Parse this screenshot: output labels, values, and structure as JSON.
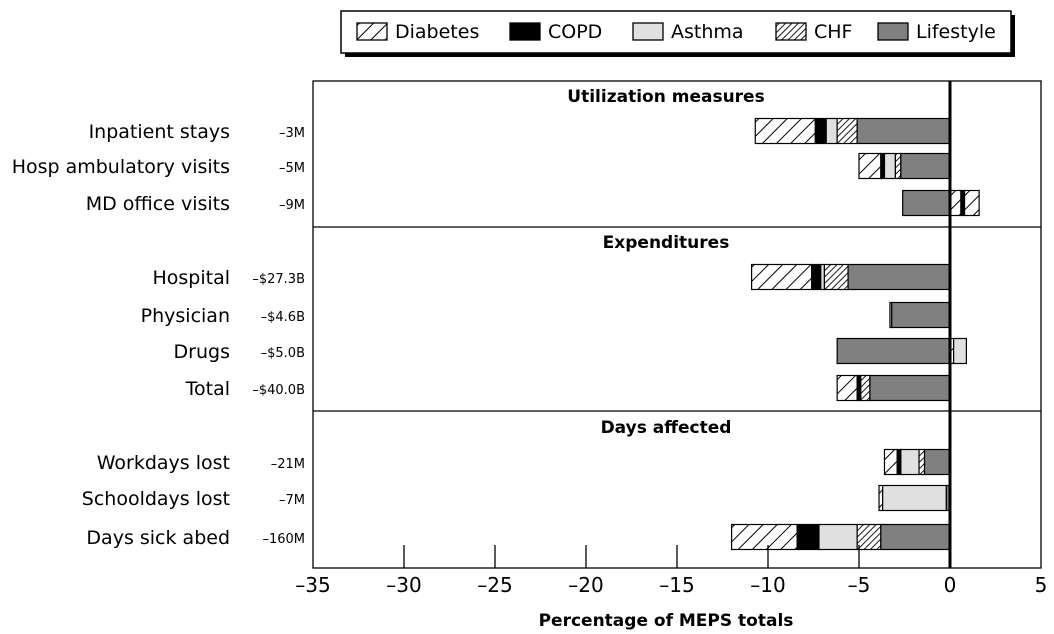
{
  "chart_data": {
    "type": "bar",
    "orientation": "horizontal-stacked",
    "xlabel": "Percentage of MEPS totals",
    "xlim": [
      -35,
      5
    ],
    "xticks": [
      "–35",
      "–30",
      "–25",
      "–20",
      "–15",
      "–10",
      "–5",
      "0",
      "5"
    ],
    "xtick_values": [
      -35,
      -30,
      -25,
      -20,
      -15,
      -10,
      -5,
      0,
      5
    ],
    "legend_position": "top-right",
    "series": [
      {
        "name": "Diabetes",
        "fill": "hatch-wide",
        "color": "#ffffff"
      },
      {
        "name": "COPD",
        "fill": "solid",
        "color": "#000000"
      },
      {
        "name": "Asthma",
        "fill": "solid",
        "color": "#e0e0e0"
      },
      {
        "name": "CHF",
        "fill": "hatch-dense",
        "color": "#ffffff"
      },
      {
        "name": "Lifestyle",
        "fill": "solid",
        "color": "#808080"
      }
    ],
    "panels": [
      {
        "title": "Utilization measures",
        "rows": [
          {
            "label": "Inpatient stays",
            "total": "–3M",
            "segments": [
              {
                "series": "Diabetes",
                "from": -10.7,
                "to": -7.4
              },
              {
                "series": "COPD",
                "from": -7.4,
                "to": -6.8
              },
              {
                "series": "Asthma",
                "from": -6.8,
                "to": -6.2
              },
              {
                "series": "CHF",
                "from": -6.2,
                "to": -5.1
              },
              {
                "series": "Lifestyle",
                "from": -5.1,
                "to": 0
              }
            ]
          },
          {
            "label": "Hosp ambulatory visits",
            "total": "–5M",
            "segments": [
              {
                "series": "Diabetes",
                "from": -5.0,
                "to": -3.8
              },
              {
                "series": "COPD",
                "from": -3.8,
                "to": -3.6
              },
              {
                "series": "Asthma",
                "from": -3.6,
                "to": -3.0
              },
              {
                "series": "CHF",
                "from": -3.0,
                "to": -2.7
              },
              {
                "series": "Lifestyle",
                "from": -2.7,
                "to": 0
              }
            ]
          },
          {
            "label": "MD office visits",
            "total": "–9M",
            "segments": [
              {
                "series": "Lifestyle",
                "from": -2.6,
                "to": 0
              },
              {
                "series": "Diabetes",
                "from": 0,
                "to": 0.6
              },
              {
                "series": "COPD",
                "from": 0.6,
                "to": 0.8
              },
              {
                "series": "Diabetes",
                "from": 0.8,
                "to": 1.6
              }
            ]
          }
        ]
      },
      {
        "title": "Expenditures",
        "rows": [
          {
            "label": "Hospital",
            "total": "–$27.3B",
            "segments": [
              {
                "series": "Diabetes",
                "from": -10.9,
                "to": -7.6
              },
              {
                "series": "COPD",
                "from": -7.6,
                "to": -7.1
              },
              {
                "series": "Asthma",
                "from": -7.1,
                "to": -6.9
              },
              {
                "series": "CHF",
                "from": -6.9,
                "to": -5.6
              },
              {
                "series": "Lifestyle",
                "from": -5.6,
                "to": 0
              }
            ]
          },
          {
            "label": "Physician",
            "total": "–$4.6B",
            "segments": [
              {
                "series": "Asthma",
                "from": -3.3,
                "to": -3.2
              },
              {
                "series": "Lifestyle",
                "from": -3.2,
                "to": 0
              }
            ]
          },
          {
            "label": "Drugs",
            "total": "–$5.0B",
            "segments": [
              {
                "series": "Lifestyle",
                "from": -6.2,
                "to": 0
              },
              {
                "series": "Diabetes",
                "from": 0,
                "to": 0.2
              },
              {
                "series": "Asthma",
                "from": 0.2,
                "to": 0.9
              }
            ]
          },
          {
            "label": "Total",
            "total": "–$40.0B",
            "segments": [
              {
                "series": "Diabetes",
                "from": -6.2,
                "to": -5.1
              },
              {
                "series": "COPD",
                "from": -5.1,
                "to": -4.9
              },
              {
                "series": "CHF",
                "from": -4.9,
                "to": -4.4
              },
              {
                "series": "Lifestyle",
                "from": -4.4,
                "to": 0
              }
            ]
          }
        ]
      },
      {
        "title": "Days affected",
        "rows": [
          {
            "label": "Workdays lost",
            "total": "–21M",
            "segments": [
              {
                "series": "Diabetes",
                "from": -3.6,
                "to": -2.9
              },
              {
                "series": "COPD",
                "from": -2.9,
                "to": -2.7
              },
              {
                "series": "Asthma",
                "from": -2.7,
                "to": -1.7
              },
              {
                "series": "CHF",
                "from": -1.7,
                "to": -1.4
              },
              {
                "series": "Lifestyle",
                "from": -1.4,
                "to": 0
              }
            ]
          },
          {
            "label": "Schooldays lost",
            "total": "–7M",
            "segments": [
              {
                "series": "Diabetes",
                "from": -3.9,
                "to": -3.7
              },
              {
                "series": "Asthma",
                "from": -3.7,
                "to": -0.2
              },
              {
                "series": "Lifestyle",
                "from": -0.2,
                "to": 0
              }
            ]
          },
          {
            "label": "Days sick abed",
            "total": "–160M",
            "segments": [
              {
                "series": "Diabetes",
                "from": -12.0,
                "to": -8.4
              },
              {
                "series": "COPD",
                "from": -8.4,
                "to": -7.2
              },
              {
                "series": "Asthma",
                "from": -7.2,
                "to": -5.1
              },
              {
                "series": "CHF",
                "from": -5.1,
                "to": -3.8
              },
              {
                "series": "Lifestyle",
                "from": -3.8,
                "to": 0
              }
            ]
          }
        ]
      }
    ]
  }
}
